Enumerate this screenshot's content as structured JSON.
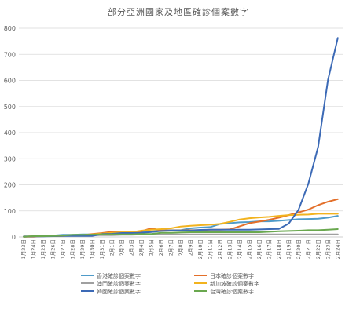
{
  "chart_data": {
    "type": "line",
    "title": "部分亞洲國家及地區確診個案數字",
    "xlabel": "",
    "ylabel": "",
    "ylim": [
      0,
      800
    ],
    "yticks": [
      0,
      100,
      200,
      300,
      400,
      500,
      600,
      700,
      800
    ],
    "grid": true,
    "legend_position": "bottom",
    "categories": [
      "1月23日",
      "1月24日",
      "1月25日",
      "1月26日",
      "1月27日",
      "1月28日",
      "1月29日",
      "1月30日",
      "1月31日",
      "2月1日",
      "2月2日",
      "2月3日",
      "2月4日",
      "2月5日",
      "2月6日",
      "2月7日",
      "2月8日",
      "2月9日",
      "2月10日",
      "2月11日",
      "2月12日",
      "2月13日",
      "2月14日",
      "2月15日",
      "2月16日",
      "2月17日",
      "2月18日",
      "2月19日",
      "2月20日",
      "2月21日",
      "2月22日",
      "2月23日",
      "2月24日"
    ],
    "series": [
      {
        "name": "香港確診個案數字",
        "color": "#4f9bc9",
        "values": [
          2,
          2,
          5,
          5,
          8,
          8,
          10,
          10,
          12,
          14,
          15,
          17,
          18,
          21,
          24,
          26,
          26,
          33,
          36,
          38,
          50,
          53,
          56,
          57,
          60,
          60,
          62,
          65,
          68,
          69,
          70,
          74,
          81
        ]
      },
      {
        "name": "日本確診個案數字",
        "color": "#e36f2a",
        "values": [
          1,
          1,
          3,
          3,
          4,
          7,
          7,
          11,
          15,
          20,
          20,
          20,
          22,
          33,
          25,
          25,
          25,
          26,
          26,
          28,
          28,
          29,
          41,
          53,
          59,
          66,
          74,
          84,
          94,
          105,
          122,
          135,
          145
        ]
      },
      {
        "name": "澳門確診個案數字",
        "color": "#a0a0a0",
        "values": [
          2,
          2,
          2,
          5,
          6,
          7,
          7,
          7,
          7,
          7,
          8,
          8,
          10,
          10,
          10,
          10,
          10,
          10,
          10,
          10,
          10,
          10,
          10,
          10,
          10,
          10,
          10,
          10,
          10,
          10,
          10,
          10,
          10
        ]
      },
      {
        "name": "新加坡確診個案數字",
        "color": "#f2b31f",
        "values": [
          1,
          3,
          3,
          4,
          5,
          7,
          7,
          10,
          13,
          16,
          18,
          18,
          24,
          28,
          30,
          33,
          40,
          43,
          45,
          47,
          50,
          58,
          67,
          72,
          75,
          77,
          81,
          84,
          85,
          86,
          89,
          89,
          89
        ]
      },
      {
        "name": "韓國確診個案數字",
        "color": "#3c6ab6",
        "values": [
          1,
          2,
          2,
          3,
          4,
          4,
          4,
          4,
          11,
          12,
          15,
          15,
          16,
          19,
          23,
          24,
          24,
          25,
          27,
          28,
          28,
          28,
          28,
          28,
          29,
          30,
          31,
          51,
          104,
          204,
          346,
          602,
          763
        ]
      },
      {
        "name": "台灣確診個案數字",
        "color": "#6aa84f",
        "values": [
          1,
          3,
          3,
          4,
          5,
          8,
          8,
          9,
          10,
          10,
          10,
          10,
          11,
          11,
          16,
          16,
          17,
          18,
          18,
          18,
          18,
          18,
          18,
          18,
          18,
          20,
          22,
          23,
          24,
          26,
          26,
          28,
          30
        ]
      }
    ]
  }
}
